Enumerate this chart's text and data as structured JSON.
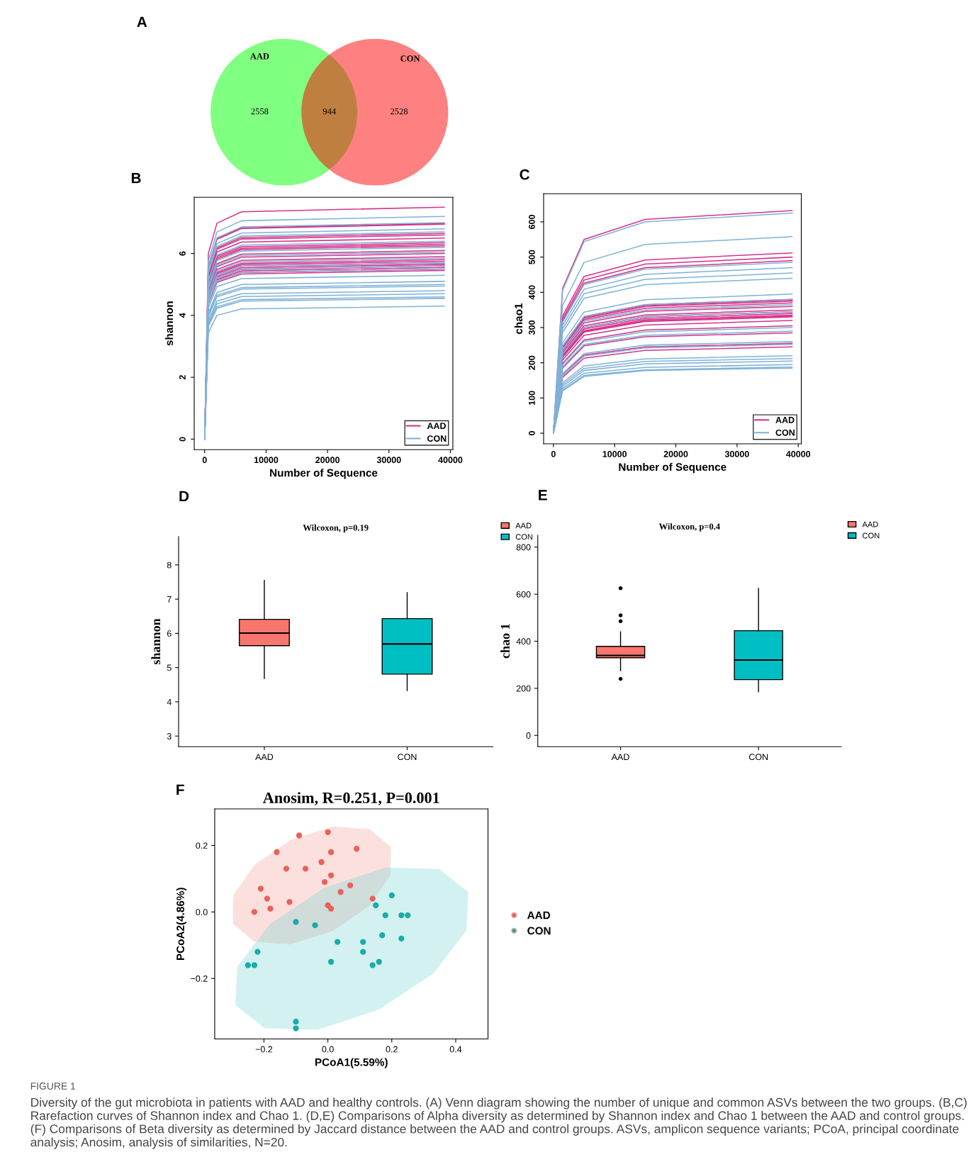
{
  "chart_data": [
    {
      "type": "other",
      "categories": [
        "AAD",
        null,
        "CON"
      ],
      "values": [
        2558,
        944,
        2528
      ],
      "colors": [
        "#80ff80",
        "#bf7f40",
        "#ff8080"
      ],
      "data_labels": true,
      "annotations": [
        "A"
      ]
    },
    {
      "type": "line",
      "xlabel": "Number of Sequence",
      "ylabel": "shannon",
      "x": [
        0,
        600,
        2000,
        6000,
        39000
      ],
      "xlim": [
        -1700,
        40400
      ],
      "ylim": [
        -0.34,
        7.82
      ],
      "xticks": [
        0,
        10000,
        20000,
        30000,
        40000
      ],
      "yticks": [
        0,
        2,
        4,
        6
      ],
      "legend": "bottom right",
      "annotations": [
        "B"
      ],
      "series": [
        {
          "name": "AAD",
          "color": "#d6338a",
          "values": [
            0,
            6.0,
            6.98,
            7.35,
            7.5
          ]
        },
        {
          "color": "#d6338a",
          "values": [
            0,
            5.58,
            6.48,
            6.83,
            6.97
          ]
        },
        {
          "color": "#d6338a",
          "values": [
            0,
            5.56,
            6.46,
            6.81,
            6.95
          ]
        },
        {
          "color": "#d6338a",
          "values": [
            0,
            5.32,
            6.18,
            6.52,
            6.65
          ]
        },
        {
          "color": "#d6338a",
          "values": [
            0,
            5.28,
            6.14,
            6.47,
            6.6
          ]
        },
        {
          "color": "#d6338a",
          "values": [
            0,
            5.2,
            6.05,
            6.37,
            6.5
          ]
        },
        {
          "color": "#d6338a",
          "values": [
            0,
            5.08,
            5.91,
            6.22,
            6.35
          ]
        },
        {
          "color": "#d6338a",
          "values": [
            0,
            5.04,
            5.86,
            6.17,
            6.3
          ]
        },
        {
          "color": "#d6338a",
          "values": [
            0,
            5.0,
            5.81,
            6.13,
            6.25
          ]
        },
        {
          "color": "#d6338a",
          "values": [
            0,
            4.88,
            5.67,
            5.98,
            6.1
          ]
        },
        {
          "color": "#d6338a",
          "values": [
            0,
            4.8,
            5.58,
            5.88,
            6.0
          ]
        },
        {
          "color": "#d6338a",
          "values": [
            0,
            4.72,
            5.49,
            5.78,
            5.9
          ]
        },
        {
          "color": "#d6338a",
          "values": [
            0,
            4.64,
            5.39,
            5.68,
            5.8
          ]
        },
        {
          "color": "#d6338a",
          "values": [
            0,
            4.6,
            5.35,
            5.64,
            5.75
          ]
        },
        {
          "color": "#d6338a",
          "values": [
            0,
            4.56,
            5.3,
            5.59,
            5.7
          ]
        },
        {
          "color": "#d6338a",
          "values": [
            0,
            4.52,
            5.25,
            5.54,
            5.65
          ]
        },
        {
          "color": "#d6338a",
          "values": [
            0,
            4.48,
            5.21,
            5.49,
            5.6
          ]
        },
        {
          "color": "#d6338a",
          "values": [
            0,
            4.44,
            5.16,
            5.44,
            5.55
          ]
        },
        {
          "color": "#d6338a",
          "values": [
            0,
            4.4,
            5.12,
            5.39,
            5.5
          ]
        },
        {
          "color": "#d6338a",
          "values": [
            0,
            4.36,
            5.07,
            5.34,
            5.45
          ]
        },
        {
          "name": "CON",
          "color": "#7fb2d8",
          "values": [
            0,
            5.76,
            6.7,
            7.06,
            7.2
          ]
        },
        {
          "color": "#7fb2d8",
          "values": [
            0,
            5.6,
            6.51,
            6.86,
            7.0
          ]
        },
        {
          "color": "#7fb2d8",
          "values": [
            0,
            5.44,
            6.32,
            6.66,
            6.8
          ]
        },
        {
          "color": "#7fb2d8",
          "values": [
            0,
            5.36,
            6.23,
            6.57,
            6.7
          ]
        },
        {
          "color": "#7fb2d8",
          "values": [
            0,
            5.12,
            5.95,
            6.27,
            6.4
          ]
        },
        {
          "color": "#7fb2d8",
          "values": [
            0,
            4.96,
            5.77,
            6.08,
            6.2
          ]
        },
        {
          "color": "#7fb2d8",
          "values": [
            0,
            4.84,
            5.63,
            5.93,
            6.05
          ]
        },
        {
          "color": "#7fb2d8",
          "values": [
            0,
            4.68,
            5.44,
            5.73,
            5.85
          ]
        },
        {
          "color": "#7fb2d8",
          "values": [
            0,
            4.56,
            5.3,
            5.59,
            5.7
          ]
        },
        {
          "color": "#7fb2d8",
          "values": [
            0,
            4.48,
            5.21,
            5.49,
            5.6
          ]
        },
        {
          "color": "#7fb2d8",
          "values": [
            0,
            4.4,
            5.12,
            5.39,
            5.5
          ]
        },
        {
          "color": "#7fb2d8",
          "values": [
            0,
            4.24,
            4.93,
            5.19,
            5.3
          ]
        },
        {
          "color": "#7fb2d8",
          "values": [
            0,
            4.08,
            4.74,
            5.0,
            5.1
          ]
        },
        {
          "color": "#7fb2d8",
          "values": [
            0,
            4.0,
            4.65,
            4.9,
            5.0
          ]
        },
        {
          "color": "#7fb2d8",
          "values": [
            0,
            3.96,
            4.6,
            4.85,
            4.95
          ]
        },
        {
          "color": "#7fb2d8",
          "values": [
            0,
            3.84,
            4.46,
            4.7,
            4.8
          ]
        },
        {
          "color": "#7fb2d8",
          "values": [
            0,
            3.76,
            4.37,
            4.61,
            4.7
          ]
        },
        {
          "color": "#7fb2d8",
          "values": [
            0,
            3.68,
            4.28,
            4.51,
            4.6
          ]
        },
        {
          "color": "#7fb2d8",
          "values": [
            0,
            3.64,
            4.23,
            4.46,
            4.55
          ]
        },
        {
          "color": "#7fb2d8",
          "values": [
            0,
            3.44,
            4.0,
            4.21,
            4.3
          ]
        }
      ]
    },
    {
      "type": "line",
      "xlabel": "Number of Sequence",
      "ylabel": "chao1",
      "x": [
        0,
        1500,
        5000,
        15000,
        39000
      ],
      "xlim": [
        -1600,
        40500
      ],
      "ylim": [
        -30,
        680
      ],
      "xticks": [
        0,
        10000,
        20000,
        30000,
        40000
      ],
      "yticks": [
        0,
        100,
        200,
        300,
        400,
        500,
        600
      ],
      "legend": "bottom right",
      "annotations": [
        "C"
      ],
      "series": [
        {
          "name": "AAD",
          "color": "#d6338a",
          "values": [
            0,
            411,
            550,
            607,
            632
          ]
        },
        {
          "color": "#d6338a",
          "values": [
            0,
            333,
            445,
            492,
            512
          ]
        },
        {
          "color": "#d6338a",
          "values": [
            0,
            325,
            435,
            480,
            500
          ]
        },
        {
          "color": "#d6338a",
          "values": [
            0,
            319,
            426,
            470,
            490
          ]
        },
        {
          "color": "#d6338a",
          "values": [
            0,
            247,
            331,
            365,
            380
          ]
        },
        {
          "color": "#d6338a",
          "values": [
            0,
            246,
            329,
            363,
            378
          ]
        },
        {
          "color": "#d6338a",
          "values": [
            0,
            244,
            326,
            360,
            375
          ]
        },
        {
          "color": "#d6338a",
          "values": [
            0,
            241,
            322,
            355,
            370
          ]
        },
        {
          "color": "#d6338a",
          "values": [
            0,
            234,
            313,
            346,
            360
          ]
        },
        {
          "color": "#d6338a",
          "values": [
            0,
            228,
            305,
            336,
            350
          ]
        },
        {
          "color": "#d6338a",
          "values": [
            0,
            224,
            300,
            331,
            345
          ]
        },
        {
          "color": "#d6338a",
          "values": [
            0,
            221,
            296,
            326,
            340
          ]
        },
        {
          "color": "#d6338a",
          "values": [
            0,
            218,
            291,
            322,
            335
          ]
        },
        {
          "color": "#d6338a",
          "values": [
            0,
            216,
            289,
            319,
            332
          ]
        },
        {
          "color": "#d6338a",
          "values": [
            0,
            215,
            287,
            317,
            330
          ]
        },
        {
          "color": "#d6338a",
          "values": [
            0,
            208,
            278,
            307,
            320
          ]
        },
        {
          "color": "#d6338a",
          "values": [
            0,
            198,
            265,
            293,
            305
          ]
        },
        {
          "color": "#d6338a",
          "values": [
            0,
            185,
            248,
            274,
            285
          ]
        },
        {
          "color": "#d6338a",
          "values": [
            0,
            166,
            222,
            245,
            255
          ]
        },
        {
          "color": "#d6338a",
          "values": [
            0,
            159,
            213,
            235,
            245
          ]
        },
        {
          "name": "CON",
          "color": "#7fb2d8",
          "values": [
            0,
            406,
            544,
            600,
            625
          ]
        },
        {
          "color": "#7fb2d8",
          "values": [
            0,
            363,
            485,
            536,
            558
          ]
        },
        {
          "color": "#7fb2d8",
          "values": [
            0,
            315,
            422,
            466,
            485
          ]
        },
        {
          "color": "#7fb2d8",
          "values": [
            0,
            306,
            409,
            451,
            470
          ]
        },
        {
          "color": "#7fb2d8",
          "values": [
            0,
            296,
            396,
            437,
            455
          ]
        },
        {
          "color": "#7fb2d8",
          "values": [
            0,
            286,
            383,
            422,
            440
          ]
        },
        {
          "color": "#7fb2d8",
          "values": [
            0,
            257,
            344,
            379,
            395
          ]
        },
        {
          "color": "#7fb2d8",
          "values": [
            0,
            247,
            331,
            365,
            380
          ]
        },
        {
          "color": "#7fb2d8",
          "values": [
            0,
            237,
            318,
            350,
            365
          ]
        },
        {
          "color": "#7fb2d8",
          "values": [
            0,
            224,
            300,
            331,
            345
          ]
        },
        {
          "color": "#7fb2d8",
          "values": [
            0,
            195,
            261,
            288,
            300
          ]
        },
        {
          "color": "#7fb2d8",
          "values": [
            0,
            189,
            252,
            278,
            290
          ]
        },
        {
          "color": "#7fb2d8",
          "values": [
            0,
            169,
            226,
            250,
            260
          ]
        },
        {
          "color": "#7fb2d8",
          "values": [
            0,
            164,
            219,
            242,
            252
          ]
        },
        {
          "color": "#7fb2d8",
          "values": [
            0,
            143,
            191,
            211,
            220
          ]
        },
        {
          "color": "#7fb2d8",
          "values": [
            0,
            138,
            184,
            204,
            212
          ]
        },
        {
          "color": "#7fb2d8",
          "values": [
            0,
            133,
            178,
            197,
            205
          ]
        },
        {
          "color": "#7fb2d8",
          "values": [
            0,
            127,
            170,
            187,
            195
          ]
        },
        {
          "color": "#7fb2d8",
          "values": [
            0,
            122,
            164,
            180,
            188
          ]
        },
        {
          "color": "#7fb2d8",
          "values": [
            0,
            120,
            161,
            178,
            185
          ]
        }
      ]
    },
    {
      "type": "box",
      "title": "Wilcoxon, p=0.19",
      "ylabel": "shannon",
      "categories": [
        "AAD",
        "CON"
      ],
      "ylim": [
        2.69,
        8.83
      ],
      "yticks": [
        3,
        4,
        5,
        6,
        7,
        8
      ],
      "legend": "top right",
      "annotations": [
        "D"
      ],
      "series": [
        {
          "name": "AAD",
          "color": "#f8766d",
          "boxes": [
            {
              "low": 4.68,
              "q1": 5.64,
              "median": 6.01,
              "q3": 6.41,
              "high": 7.55
            },
            null
          ]
        },
        {
          "name": "CON",
          "color": "#00bfc4",
          "boxes": [
            null,
            {
              "low": 4.33,
              "q1": 4.81,
              "median": 5.69,
              "q3": 6.43,
              "high": 7.19
            }
          ]
        }
      ]
    },
    {
      "type": "box",
      "title": "Wilcoxon, p=0.4",
      "ylabel": "chao 1",
      "categories": [
        "AAD",
        "CON"
      ],
      "ylim": [
        -48,
        850
      ],
      "yticks": [
        0,
        200,
        400,
        600,
        800
      ],
      "legend": "top right",
      "annotations": [
        "E"
      ],
      "series": [
        {
          "name": "AAD",
          "color": "#f8766d",
          "boxes": [
            {
              "low": 275,
              "q1": 330,
              "median": 340,
              "q3": 378,
              "high": 440,
              "outliers": [
                625,
                510,
                485,
                240
              ]
            },
            null
          ]
        },
        {
          "name": "CON",
          "color": "#00bfc4",
          "boxes": [
            null,
            {
              "low": 185,
              "q1": 237,
              "median": 320,
              "q3": 445,
              "high": 625
            }
          ]
        }
      ]
    },
    {
      "type": "scatter",
      "title": "Anosim, R=0.251, P=0.001",
      "xlabel": "PCoA1(5.59%)",
      "ylabel": "PCoA2(4.86%)",
      "xlim": [
        -0.354,
        0.501
      ],
      "ylim": [
        -0.382,
        0.31
      ],
      "xticks": [
        {
          "value": -0.2,
          "label": "−0.2"
        },
        {
          "value": 0.0,
          "label": "0.0"
        },
        {
          "value": 0.2,
          "label": "0.2"
        },
        {
          "value": 0.4,
          "label": "0.4"
        }
      ],
      "yticks": [
        {
          "value": -0.2,
          "label": "−0.2"
        },
        {
          "value": 0.0,
          "label": "0.0"
        },
        {
          "value": 0.2,
          "label": "0.2"
        }
      ],
      "legend": "right",
      "annotations": [
        "F",
        "FIGURE 1",
        "Diversity of the gut microbiota in patients with AAD and healthy controls. (A) Venn diagram showing the number of unique and common ASVs between the two groups. (B,C) Rarefaction curves of Shannon index and Chao 1. (D,E) Comparisons of Alpha diversity as determined by Shannon index and Chao 1 between the AAD and control groups. (F) Comparisons of Beta diversity as determined by Jaccard distance between the AAD and control groups. ASVs, amplicon sequence variants; PCoA, principal coordinate analysis; Anosim, analysis of similarities, N=20."
      ],
      "series": [
        {
          "type": "area",
          "color": "#f4a6a0",
          "x": [
            0.195,
            0.13,
            0.017,
            -0.113,
            -0.227,
            -0.294,
            -0.295,
            -0.23,
            -0.117,
            0.013,
            0.127,
            0.194,
            0.195
          ],
          "values": [
            0.194,
            0.247,
            0.255,
            0.216,
            0.141,
            0.049,
            -0.034,
            -0.087,
            -0.095,
            -0.056,
            0.019,
            0.111,
            0.194
          ]
        },
        {
          "type": "area",
          "color": "#7fd8d6",
          "x": [
            0.437,
            0.347,
            0.182,
            -0.01,
            -0.18,
            -0.281,
            -0.287,
            -0.197,
            -0.032,
            0.16,
            0.33,
            0.431,
            0.437
          ],
          "values": [
            0.059,
            0.127,
            0.132,
            0.071,
            -0.038,
            -0.165,
            -0.279,
            -0.347,
            -0.352,
            -0.291,
            -0.182,
            -0.055,
            0.059
          ]
        },
        {
          "name": "AAD",
          "color": "#e8625a",
          "marker": "circle",
          "x": [
            -0.09,
            0.0,
            0.09,
            -0.16,
            0.01,
            -0.13,
            -0.07,
            -0.02,
            0.01,
            -0.21,
            -0.01,
            0.07,
            0.04,
            -0.19,
            -0.12,
            -0.18,
            -0.23,
            0.0,
            0.01,
            0.14
          ],
          "values": [
            0.23,
            0.24,
            0.19,
            0.18,
            0.18,
            0.13,
            0.13,
            0.15,
            0.11,
            0.07,
            0.09,
            0.08,
            0.06,
            0.04,
            0.03,
            0.01,
            0.0,
            0.02,
            0.01,
            0.04
          ]
        },
        {
          "name": "CON",
          "color": "#1aaca8",
          "marker": "circle",
          "x": [
            0.2,
            0.15,
            0.23,
            0.25,
            0.18,
            -0.1,
            -0.04,
            0.17,
            0.03,
            0.23,
            0.11,
            0.11,
            -0.22,
            0.16,
            0.01,
            -0.25,
            -0.23,
            0.14,
            -0.1,
            -0.1
          ],
          "values": [
            0.05,
            0.02,
            -0.01,
            -0.01,
            -0.01,
            -0.03,
            -0.04,
            -0.07,
            -0.09,
            -0.08,
            -0.09,
            -0.12,
            -0.12,
            -0.15,
            -0.15,
            -0.16,
            -0.16,
            -0.16,
            -0.33,
            -0.35
          ]
        }
      ]
    }
  ]
}
